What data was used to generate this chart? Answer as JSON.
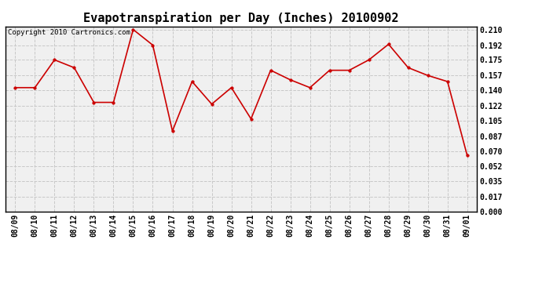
{
  "title": "Evapotranspiration per Day (Inches) 20100902",
  "copyright_text": "Copyright 2010 Cartronics.com",
  "x_labels": [
    "08/09",
    "08/10",
    "08/11",
    "08/12",
    "08/13",
    "08/14",
    "08/15",
    "08/16",
    "08/17",
    "08/18",
    "08/19",
    "08/20",
    "08/21",
    "08/22",
    "08/23",
    "08/24",
    "08/25",
    "08/26",
    "08/27",
    "08/28",
    "08/29",
    "08/30",
    "08/31",
    "09/01"
  ],
  "y_values": [
    0.143,
    0.143,
    0.175,
    0.166,
    0.126,
    0.126,
    0.21,
    0.192,
    0.093,
    0.15,
    0.124,
    0.143,
    0.107,
    0.163,
    0.152,
    0.143,
    0.163,
    0.163,
    0.175,
    0.193,
    0.166,
    0.157,
    0.15,
    0.065
  ],
  "y_ticks": [
    0.0,
    0.017,
    0.035,
    0.052,
    0.07,
    0.087,
    0.105,
    0.122,
    0.14,
    0.157,
    0.175,
    0.192,
    0.21
  ],
  "line_color": "#cc0000",
  "marker_color": "#cc0000",
  "marker_style": "o",
  "marker_size": 2.5,
  "line_width": 1.2,
  "bg_color": "#ffffff",
  "plot_bg_color": "#f0f0f0",
  "grid_color": "#c8c8c8",
  "title_fontsize": 11,
  "tick_fontsize": 7,
  "copyright_fontsize": 6.5
}
